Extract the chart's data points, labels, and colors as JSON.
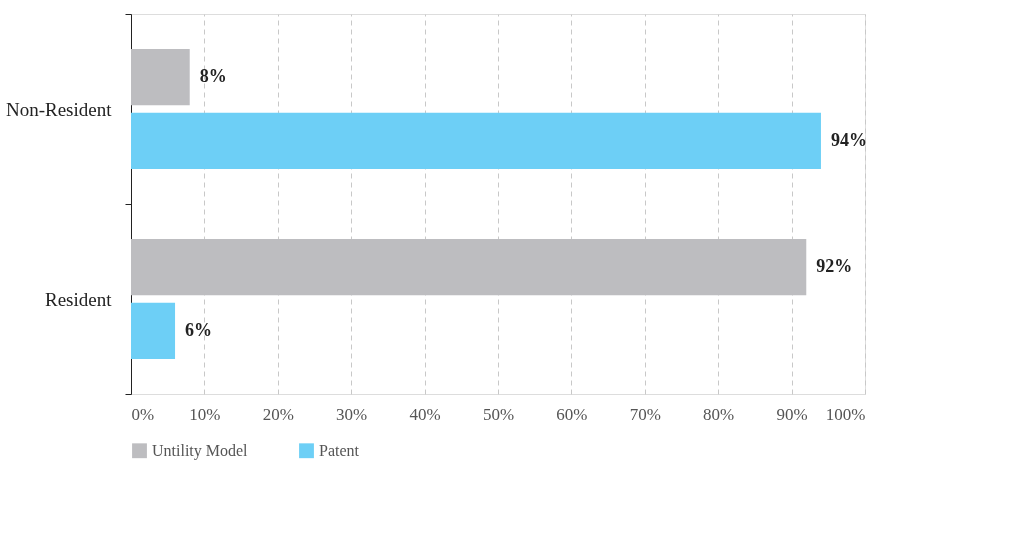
{
  "chart_data": {
    "type": "bar",
    "orientation": "horizontal",
    "categories": [
      "Non-Resident",
      "Resident"
    ],
    "series": [
      {
        "name": "Untility Model",
        "color": "#bdbdc0",
        "values": [
          8,
          92
        ],
        "value_labels": [
          "8%",
          "92%"
        ]
      },
      {
        "name": "Patent",
        "color": "#6dcff6",
        "values": [
          94,
          6
        ],
        "value_labels": [
          "94%",
          "6%"
        ]
      }
    ],
    "xlim": [
      0,
      100
    ],
    "xticks": [
      {
        "value": 0,
        "label": "0%"
      },
      {
        "value": 10,
        "label": "10%"
      },
      {
        "value": 20,
        "label": "20%"
      },
      {
        "value": 30,
        "label": "30%"
      },
      {
        "value": 40,
        "label": "40%"
      },
      {
        "value": 50,
        "label": "50%"
      },
      {
        "value": 60,
        "label": "60%"
      },
      {
        "value": 70,
        "label": "70%"
      },
      {
        "value": 80,
        "label": "80%"
      },
      {
        "value": 90,
        "label": "90%"
      },
      {
        "value": 100,
        "label": "100%"
      }
    ],
    "grid": "x",
    "legend": "bottom"
  }
}
